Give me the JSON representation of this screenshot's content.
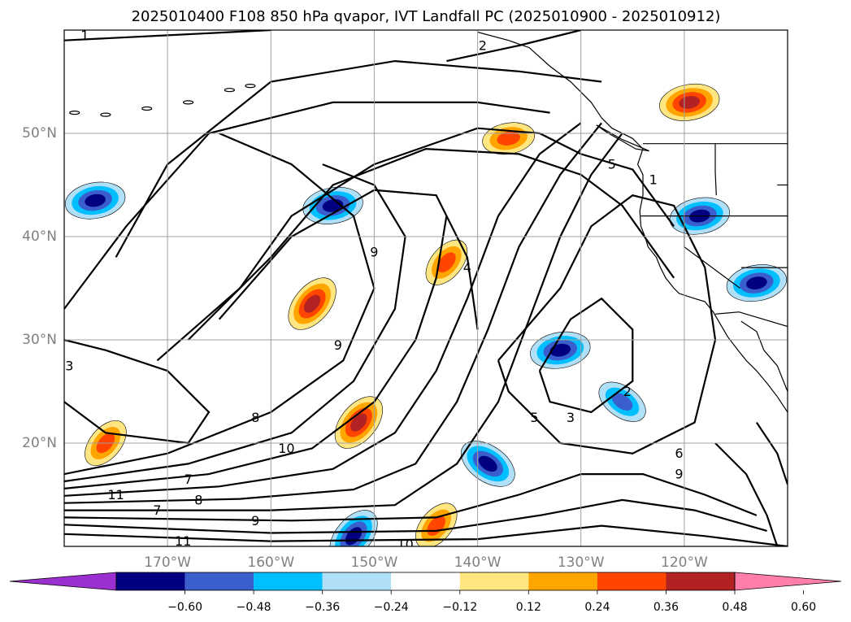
{
  "chart_data": {
    "type": "heatmap",
    "title": "2025010400 F108 850 hPa qvapor, IVT Landfall PC (2025010900 - 2025010912)",
    "xlabel": "",
    "ylabel": "",
    "xlim": [
      -180,
      -110
    ],
    "ylim": [
      10,
      60
    ],
    "grid": true,
    "x_ticks": [
      -170,
      -160,
      -150,
      -140,
      -130,
      -120
    ],
    "x_tick_labels": [
      "170°W",
      "160°W",
      "150°W",
      "140°W",
      "130°W",
      "120°W"
    ],
    "y_ticks": [
      20,
      30,
      40,
      50
    ],
    "y_tick_labels": [
      "20°N",
      "30°N",
      "40°N",
      "50°N"
    ],
    "colorbar": {
      "orientation": "horizontal",
      "extend": "both",
      "levels": [
        -0.72,
        -0.6,
        -0.48,
        -0.36,
        -0.24,
        -0.12,
        0.12,
        0.24,
        0.36,
        0.48,
        0.6,
        0.72
      ],
      "tick_values": [
        -0.6,
        -0.48,
        -0.36,
        -0.24,
        -0.12,
        0.12,
        0.24,
        0.36,
        0.48,
        0.6
      ],
      "tick_labels": [
        "−0.60",
        "−0.48",
        "−0.36",
        "−0.24",
        "−0.12",
        "0.12",
        "0.24",
        "0.36",
        "0.48",
        "0.60"
      ],
      "colors": [
        "#9b30d0",
        "#000080",
        "#3a5fcd",
        "#00bfff",
        "#b0e0f8",
        "#ffffff",
        "#ffe680",
        "#ffa500",
        "#ff4500",
        "#b22222",
        "#ff7fa8"
      ]
    },
    "contours": [
      {
        "level": "1",
        "lon": -178,
        "lat": 59.5
      },
      {
        "level": "1",
        "lon": -123,
        "lat": 45.5
      },
      {
        "level": "2",
        "lon": -139.5,
        "lat": 58.5
      },
      {
        "level": "2",
        "lon": -125.5,
        "lat": 25
      },
      {
        "level": "3",
        "lon": -179.5,
        "lat": 27.5
      },
      {
        "level": "3",
        "lon": -131,
        "lat": 22.5
      },
      {
        "level": "4",
        "lon": -141,
        "lat": 37
      },
      {
        "level": "5",
        "lon": -127,
        "lat": 47
      },
      {
        "level": "5",
        "lon": -134.5,
        "lat": 22.5
      },
      {
        "level": "6",
        "lon": -120.5,
        "lat": 19
      },
      {
        "level": "7",
        "lon": -168,
        "lat": 16.5
      },
      {
        "level": "7",
        "lon": -171,
        "lat": 13.5
      },
      {
        "level": "8",
        "lon": -161.5,
        "lat": 22.5
      },
      {
        "level": "8",
        "lon": -167,
        "lat": 14.5
      },
      {
        "level": "9",
        "lon": -153.5,
        "lat": 29.5
      },
      {
        "level": "9",
        "lon": -150,
        "lat": 38.5
      },
      {
        "level": "9",
        "lon": -161.5,
        "lat": 12.5
      },
      {
        "level": "9",
        "lon": -120.5,
        "lat": 17
      },
      {
        "level": "10",
        "lon": -158.5,
        "lat": 19.5
      },
      {
        "level": "10",
        "lon": -147,
        "lat": 10.2
      },
      {
        "level": "11",
        "lon": -175,
        "lat": 15
      },
      {
        "level": "11",
        "lon": -168.5,
        "lat": 10.5
      }
    ],
    "contour_levels": [
      "1",
      "2",
      "3",
      "4",
      "5",
      "6",
      "7",
      "8",
      "9",
      "10",
      "11"
    ],
    "shaded_regions": [
      {
        "sign": "positive",
        "value": 0.48,
        "lon": -156,
        "lat": 33.5
      },
      {
        "sign": "positive",
        "value": 0.48,
        "lon": -151.5,
        "lat": 22
      },
      {
        "sign": "positive",
        "value": 0.36,
        "lon": -176,
        "lat": 20
      },
      {
        "sign": "positive",
        "value": 0.48,
        "lon": -119.5,
        "lat": 53
      },
      {
        "sign": "positive",
        "value": 0.36,
        "lon": -137,
        "lat": 49.5
      },
      {
        "sign": "positive",
        "value": 0.36,
        "lon": -144,
        "lat": 12
      },
      {
        "sign": "positive",
        "value": 0.36,
        "lon": -143,
        "lat": 37.5
      },
      {
        "sign": "negative",
        "value": -0.48,
        "lon": -139,
        "lat": 18
      },
      {
        "sign": "negative",
        "value": -0.48,
        "lon": -154,
        "lat": 43
      },
      {
        "sign": "negative",
        "value": -0.48,
        "lon": -177,
        "lat": 43.5
      },
      {
        "sign": "negative",
        "value": -0.48,
        "lon": -118.5,
        "lat": 42
      },
      {
        "sign": "negative",
        "value": -0.48,
        "lon": -113,
        "lat": 35.5
      },
      {
        "sign": "negative",
        "value": -0.36,
        "lon": -126,
        "lat": 24
      },
      {
        "sign": "negative",
        "value": -0.48,
        "lon": -132,
        "lat": 29
      },
      {
        "sign": "negative",
        "value": -0.48,
        "lon": -152,
        "lat": 11
      }
    ]
  }
}
